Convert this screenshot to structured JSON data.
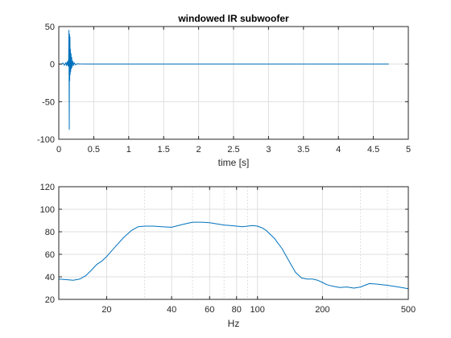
{
  "figure": {
    "background": "#ffffff",
    "line_color": "#0072bd",
    "axes_color": "#262626",
    "grid_color": "#dfdfdf"
  },
  "chart_data": [
    {
      "type": "line",
      "title": "windowed IR subwoofer",
      "xlabel": "time [s]",
      "ylabel": "",
      "xlim": [
        0,
        5
      ],
      "ylim": [
        -100,
        50
      ],
      "xscale": "linear",
      "grid": true,
      "xticks": [
        0,
        0.5,
        1,
        1.5,
        2,
        2.5,
        3,
        3.5,
        4,
        4.5,
        5
      ],
      "xtick_labels": [
        "0",
        "0.5",
        "1",
        "1.5",
        "2",
        "2.5",
        "3",
        "3.5",
        "4",
        "4.5",
        "5"
      ],
      "yticks": [
        -100,
        -50,
        0,
        50
      ],
      "ytick_labels": [
        "-100",
        "-50",
        "0",
        "50"
      ],
      "series": [
        {
          "x": [
            0.0,
            0.04,
            0.06,
            0.08,
            0.1,
            0.11,
            0.12,
            0.13,
            0.135,
            0.14,
            0.145,
            0.15,
            0.153,
            0.156,
            0.16,
            0.163,
            0.166,
            0.17,
            0.175,
            0.18,
            0.185,
            0.19,
            0.2,
            0.21,
            0.22,
            0.24,
            0.26,
            0.3,
            0.4,
            0.6,
            1.0,
            2.0,
            3.0,
            4.0,
            4.72
          ],
          "y": [
            0,
            0,
            1.5,
            -1.5,
            2,
            -2,
            3,
            -2,
            5,
            -3,
            45,
            -87,
            40,
            -22,
            36,
            -14,
            20,
            -10,
            14,
            -6,
            9,
            -4,
            4,
            -2,
            2,
            -1,
            0.5,
            0.2,
            0,
            0,
            0,
            0,
            0,
            0,
            0
          ]
        }
      ]
    },
    {
      "type": "line",
      "title": "",
      "xlabel": "Hz",
      "ylabel": "",
      "xlim": [
        12,
        500
      ],
      "ylim": [
        20,
        120
      ],
      "xscale": "log",
      "grid": true,
      "xticks": [
        20,
        40,
        60,
        80,
        100,
        200,
        500
      ],
      "xtick_labels": [
        "20",
        "40",
        "60",
        "80",
        "100",
        "200",
        "500"
      ],
      "xminor_grid": [
        30,
        50,
        70,
        90,
        300,
        400
      ],
      "yticks": [
        20,
        40,
        60,
        80,
        100,
        120
      ],
      "ytick_labels": [
        "20",
        "40",
        "60",
        "80",
        "100",
        "120"
      ],
      "series": [
        {
          "x": [
            12,
            13,
            14,
            15,
            16,
            17,
            18,
            19,
            20,
            22,
            24,
            26,
            28,
            30,
            33,
            36,
            40,
            45,
            50,
            55,
            60,
            65,
            70,
            75,
            80,
            85,
            90,
            95,
            100,
            105,
            110,
            120,
            130,
            140,
            150,
            160,
            170,
            180,
            190,
            200,
            210,
            220,
            240,
            260,
            280,
            300,
            330,
            360,
            400,
            450,
            500
          ],
          "y": [
            38,
            37.5,
            37,
            38,
            41,
            46,
            51,
            54,
            58,
            67,
            75,
            81,
            84.5,
            85,
            85,
            84.5,
            84,
            86.5,
            88.5,
            88.5,
            88,
            87,
            86,
            85.5,
            85,
            84.5,
            85,
            85.5,
            85,
            83.5,
            81,
            74,
            65,
            54,
            44,
            39,
            38,
            38,
            37,
            35,
            33,
            32,
            30.5,
            31,
            30,
            31,
            34,
            33.5,
            32.5,
            31,
            29.5
          ]
        }
      ]
    }
  ]
}
